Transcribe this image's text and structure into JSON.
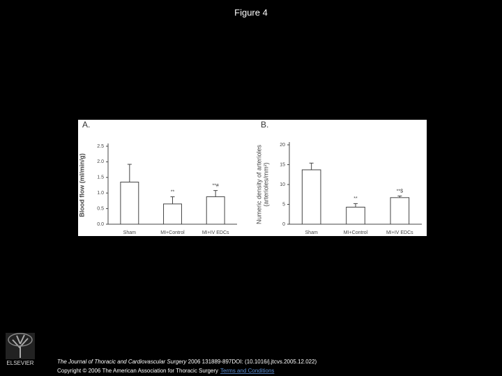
{
  "header": {
    "title": "Figure 4"
  },
  "chart_data": [
    {
      "type": "bar",
      "panel": "A.",
      "ylabel": [
        "Blood flow (ml/min/g)"
      ],
      "categories": [
        "Sham",
        "MI+Control",
        "MI+IV EDCs"
      ],
      "values": [
        1.35,
        0.65,
        0.88
      ],
      "errors": [
        0.57,
        0.23,
        0.2
      ],
      "value_annotations": [
        null,
        "**",
        "**#"
      ],
      "color": "#ffffff",
      "ylim": [
        0,
        2.5
      ],
      "yticks": [
        {
          "value": 0,
          "label": "0.0"
        },
        0.5,
        {
          "value": 1,
          "label": "1.0"
        },
        1.5,
        {
          "value": 2,
          "label": "2.0"
        },
        2.5
      ]
    },
    {
      "type": "bar",
      "panel": "B.",
      "ylabel": [
        "Numeric density of arterioles",
        "(arterioles/mm²)"
      ],
      "categories": [
        "Sham",
        "MI+Control",
        "MI+IV EDCs"
      ],
      "values": [
        13.7,
        4.3,
        6.7
      ],
      "errors": [
        1.7,
        0.9,
        0.4
      ],
      "value_annotations": [
        null,
        "**",
        "**$"
      ],
      "color": "#ffffff",
      "ylim": [
        0,
        20
      ],
      "yticks": [
        0,
        5,
        10,
        15,
        20
      ]
    }
  ],
  "footer": {
    "publisher": "ELSEVIER",
    "journal": "The Journal of Thoracic and Cardiovascular Surgery",
    "citation": " 2006 131889-897DOI: (10.1016/j.jtcvs.2005.12.022) ",
    "copyright": "Copyright © 2006 The American Association for Thoracic Surgery",
    "link": "Terms and Conditions"
  }
}
